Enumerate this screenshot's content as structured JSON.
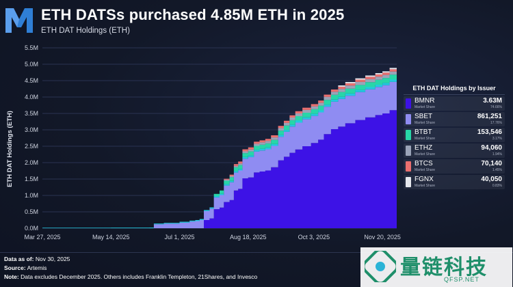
{
  "header": {
    "title": "ETH DATSs purchased 4.85M ETH in 2025",
    "subtitle": "ETH DAT Holdings (ETH)"
  },
  "legend": {
    "title": "ETH DAT Holdings by Issuer",
    "share_label": "Market Share",
    "items": [
      {
        "name": "BMNR",
        "value": "3.63M",
        "share": "74.66%",
        "color": "#3d12e6"
      },
      {
        "name": "SBET",
        "value": "861,251",
        "share": "17.76%",
        "color": "#8f8cf2"
      },
      {
        "name": "BTBT",
        "value": "153,546",
        "share": "3.17%",
        "color": "#27d6a8"
      },
      {
        "name": "ETHZ",
        "value": "94,060",
        "share": "1.94%",
        "color": "#9aa3b8"
      },
      {
        "name": "BTCS",
        "value": "70,140",
        "share": "1.45%",
        "color": "#ea6f6f"
      },
      {
        "name": "FGNX",
        "value": "40,050",
        "share": "0.83%",
        "color": "#e6e8ee"
      }
    ]
  },
  "footer": {
    "data_as_of_label": "Data as of:",
    "data_as_of": "Nov 30, 2025",
    "source_label": "Source:",
    "source": "Artemis",
    "note_label": "Note:",
    "note": "Data excludes December 2025. Others includes Franklin Templeton, 21Shares, and Invesco"
  },
  "watermark": {
    "text": "量链科技",
    "url": "QFSP.NET"
  },
  "chart_data": {
    "type": "area",
    "stacked": true,
    "title": "ETH DATSs purchased 4.85M ETH in 2025",
    "subtitle": "ETH DAT Holdings (ETH)",
    "ylabel": "ETH DAT Holdings (ETH)",
    "xlabel": "",
    "ylim": [
      0,
      5500000
    ],
    "yticks": [
      0,
      500000,
      1000000,
      1500000,
      2000000,
      2500000,
      3000000,
      3500000,
      4000000,
      4500000,
      5000000,
      5500000
    ],
    "ytick_labels": [
      "0.0M",
      "0.5M",
      "1.0M",
      "1.5M",
      "2.0M",
      "2.5M",
      "3.0M",
      "3.5M",
      "4.0M",
      "4.5M",
      "5.0M",
      "5.5M"
    ],
    "xlim": [
      "2025-03-27",
      "2025-11-30"
    ],
    "xticks": [
      "2025-03-27",
      "2025-05-14",
      "2025-07-01",
      "2025-08-18",
      "2025-10-03",
      "2025-11-20"
    ],
    "xtick_labels": [
      "Mar 27, 2025",
      "May 14, 2025",
      "Jul 1, 2025",
      "Aug 18, 2025",
      "Oct 3, 2025",
      "Nov 20, 2025"
    ],
    "grid": "horizontal",
    "legend_position": "right",
    "x": [
      "2025-03-27",
      "2025-05-14",
      "2025-06-10",
      "2025-06-13",
      "2025-06-20",
      "2025-07-01",
      "2025-07-08",
      "2025-07-12",
      "2025-07-15",
      "2025-07-18",
      "2025-07-22",
      "2025-07-25",
      "2025-07-29",
      "2025-08-01",
      "2025-08-05",
      "2025-08-08",
      "2025-08-11",
      "2025-08-14",
      "2025-08-18",
      "2025-08-22",
      "2025-08-26",
      "2025-08-30",
      "2025-09-03",
      "2025-09-08",
      "2025-09-12",
      "2025-09-16",
      "2025-09-20",
      "2025-09-25",
      "2025-10-01",
      "2025-10-06",
      "2025-10-10",
      "2025-10-15",
      "2025-10-20",
      "2025-10-25",
      "2025-11-01",
      "2025-11-08",
      "2025-11-15",
      "2025-11-20",
      "2025-11-25",
      "2025-11-30"
    ],
    "series": [
      {
        "name": "BMNR",
        "color": "#3d12e6",
        "values": [
          0,
          0,
          0,
          0,
          0,
          0,
          0,
          0,
          0,
          250000,
          300000,
          580000,
          630000,
          800000,
          860000,
          1150000,
          1200000,
          1520000,
          1550000,
          1700000,
          1730000,
          1760000,
          1860000,
          2070000,
          2180000,
          2300000,
          2400000,
          2500000,
          2600000,
          2700000,
          2870000,
          3020000,
          3100000,
          3200000,
          3300000,
          3380000,
          3450000,
          3500000,
          3600000,
          3630000
        ]
      },
      {
        "name": "SBET",
        "color": "#8f8cf2",
        "values": [
          0,
          0,
          0,
          120000,
          140000,
          170000,
          205000,
          220000,
          250000,
          270000,
          300000,
          360000,
          380000,
          500000,
          540000,
          545000,
          560000,
          600000,
          620000,
          635000,
          640000,
          645000,
          650000,
          720000,
          760000,
          800000,
          820000,
          820000,
          825000,
          830000,
          835000,
          836000,
          839000,
          840000,
          850000,
          855000,
          857000,
          860000,
          861000,
          861251
        ]
      },
      {
        "name": "BTBT",
        "color": "#27d6a8",
        "values": [
          0,
          0,
          0,
          0,
          0,
          0,
          0,
          0,
          0,
          0,
          0,
          70000,
          100000,
          105000,
          110000,
          115000,
          117000,
          119000,
          120000,
          122000,
          124000,
          126000,
          128000,
          130000,
          132000,
          135000,
          137000,
          140000,
          141000,
          143000,
          145000,
          147000,
          148000,
          150000,
          150000,
          150500,
          151000,
          152000,
          153000,
          153546
        ]
      },
      {
        "name": "ETHZ",
        "color": "#9aa3b8",
        "values": [
          0,
          0,
          0,
          0,
          0,
          0,
          0,
          0,
          0,
          0,
          0,
          0,
          0,
          35000,
          40000,
          45000,
          50000,
          55000,
          60000,
          65000,
          68000,
          72000,
          75000,
          78000,
          80000,
          82000,
          84000,
          86000,
          88000,
          89000,
          90000,
          91000,
          92000,
          92500,
          93000,
          93500,
          93800,
          94000,
          94000,
          94060
        ]
      },
      {
        "name": "BTCS",
        "color": "#ea6f6f",
        "values": [
          0,
          0,
          0,
          0,
          0,
          0,
          0,
          0,
          0,
          0,
          0,
          0,
          0,
          25000,
          40000,
          55000,
          60000,
          62000,
          63000,
          64000,
          64500,
          65000,
          65500,
          66000,
          66500,
          67000,
          67500,
          68000,
          68500,
          69000,
          69200,
          69400,
          69600,
          69800,
          70000,
          70000,
          70100,
          70140,
          70140,
          70140
        ]
      },
      {
        "name": "FGNX",
        "color": "#e6e8ee",
        "values": [
          0,
          0,
          0,
          0,
          0,
          0,
          0,
          0,
          0,
          0,
          0,
          0,
          0,
          0,
          0,
          0,
          0,
          0,
          0,
          0,
          0,
          0,
          0,
          0,
          0,
          0,
          0,
          0,
          0,
          0,
          0,
          0,
          40000,
          40000,
          40000,
          40050,
          40050,
          40050,
          40050,
          40050
        ]
      },
      {
        "name": "Others",
        "color": "#23c8e0",
        "values": [
          16000,
          18000,
          20000,
          22000,
          25000,
          27000,
          28000,
          30000,
          32000,
          34000,
          36000,
          38000,
          40000,
          42000,
          44000,
          46000,
          48000,
          50000,
          52000,
          53000,
          54000,
          55000,
          56000,
          57000,
          58000,
          59000,
          60000,
          61000,
          62000,
          63000,
          64000,
          65000,
          66000,
          66000,
          67000,
          67500,
          68000,
          68500,
          69000,
          69000
        ]
      }
    ]
  }
}
